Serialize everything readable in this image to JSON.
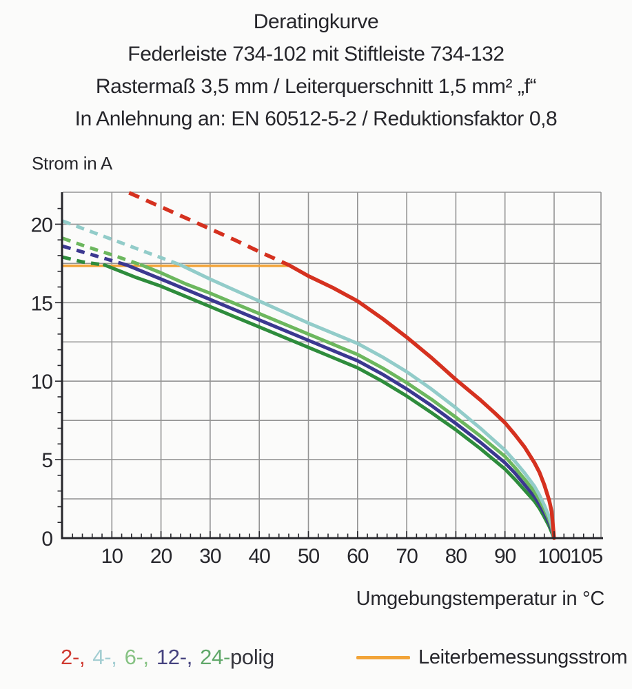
{
  "page": {
    "background": "#fbfbfa",
    "text_color": "#26262b"
  },
  "title": {
    "line1": "Deratingkurve",
    "line2": "Federleiste 734-102 mit Stiftleiste 734-132",
    "line3": "Rastermaß 3,5 mm / Leiterquerschnitt 1,5 mm² „f“",
    "line4": "In Anlehnung an: EN 60512-5-2 / Reduktionsfaktor 0,8"
  },
  "chart_data": {
    "type": "line",
    "ylabel": "Strom in A",
    "xlabel": "Umgebungstemperatur in °C",
    "grid_on": true,
    "grid_color": "#949494",
    "axis_color": "#26262b",
    "x_axis": {
      "min": 0,
      "max": 109.5,
      "gridlines": [
        10,
        20,
        30,
        40,
        50,
        60,
        70,
        80,
        90,
        100
      ],
      "tick_values": [
        10,
        20,
        30,
        40,
        50,
        60,
        70,
        80,
        90,
        100,
        105
      ],
      "tick_labels": [
        "10",
        "20",
        "30",
        "40",
        "50",
        "60",
        "70",
        "80",
        "90",
        "100",
        "105"
      ],
      "minor_step": 2
    },
    "y_axis": {
      "min": 0,
      "max": 22,
      "gridlines": [
        2.5,
        5,
        7.5,
        10,
        12.5,
        15,
        17.5,
        20
      ],
      "tick_values": [
        0,
        5,
        10,
        15,
        20
      ],
      "tick_labels": [
        "0",
        "5",
        "10",
        "15",
        "20"
      ],
      "minor_step": 1
    },
    "reference_line": {
      "label": "Leiterbemessungsstrom",
      "current_a": 17.35,
      "t_start": 0,
      "t_end": 46,
      "color": "#f2a439"
    },
    "series": [
      {
        "label": "24-polig",
        "color": "#2e8c3c",
        "dashed": [
          [
            0,
            17.9
          ],
          [
            4,
            17.6
          ],
          [
            8.5,
            17.4
          ]
        ],
        "solid": [
          [
            8.5,
            17.4
          ],
          [
            15,
            16.6
          ],
          [
            20,
            16.05
          ],
          [
            25,
            15.4
          ],
          [
            30,
            14.75
          ],
          [
            35,
            14.1
          ],
          [
            40,
            13.45
          ],
          [
            45,
            12.8
          ],
          [
            50,
            12.15
          ],
          [
            55,
            11.5
          ],
          [
            60,
            10.85
          ],
          [
            65,
            10.0
          ],
          [
            70,
            9.05
          ],
          [
            75,
            8.0
          ],
          [
            80,
            6.9
          ],
          [
            85,
            5.7
          ],
          [
            90,
            4.4
          ],
          [
            92,
            3.75
          ],
          [
            94,
            3.05
          ],
          [
            96,
            2.35
          ],
          [
            97,
            1.9
          ],
          [
            98,
            1.35
          ],
          [
            99,
            0.75
          ],
          [
            99.4,
            0.45
          ],
          [
            100,
            0
          ]
        ]
      },
      {
        "label": "12-polig",
        "color": "#3b3890",
        "dashed": [
          [
            0,
            18.6
          ],
          [
            6,
            18.05
          ],
          [
            13,
            17.4
          ]
        ],
        "solid": [
          [
            13,
            17.4
          ],
          [
            20,
            16.5
          ],
          [
            25,
            15.85
          ],
          [
            30,
            15.2
          ],
          [
            35,
            14.55
          ],
          [
            40,
            13.9
          ],
          [
            45,
            13.25
          ],
          [
            50,
            12.6
          ],
          [
            55,
            11.95
          ],
          [
            60,
            11.3
          ],
          [
            65,
            10.45
          ],
          [
            70,
            9.5
          ],
          [
            75,
            8.45
          ],
          [
            80,
            7.3
          ],
          [
            85,
            6.1
          ],
          [
            90,
            4.8
          ],
          [
            92,
            4.15
          ],
          [
            94,
            3.4
          ],
          [
            96,
            2.65
          ],
          [
            97,
            2.15
          ],
          [
            98,
            1.6
          ],
          [
            99,
            0.95
          ],
          [
            99.5,
            0.55
          ],
          [
            100,
            0
          ]
        ]
      },
      {
        "label": "6-polig",
        "color": "#6cb75e",
        "dashed": [
          [
            0,
            19.1
          ],
          [
            5,
            18.55
          ],
          [
            10,
            18.05
          ],
          [
            16,
            17.4
          ]
        ],
        "solid": [
          [
            16,
            17.4
          ],
          [
            20,
            16.9
          ],
          [
            25,
            16.2
          ],
          [
            30,
            15.6
          ],
          [
            35,
            14.95
          ],
          [
            40,
            14.3
          ],
          [
            45,
            13.65
          ],
          [
            50,
            13.0
          ],
          [
            55,
            12.35
          ],
          [
            60,
            11.7
          ],
          [
            65,
            10.85
          ],
          [
            70,
            9.9
          ],
          [
            75,
            8.85
          ],
          [
            80,
            7.7
          ],
          [
            85,
            6.5
          ],
          [
            90,
            5.2
          ],
          [
            92,
            4.5
          ],
          [
            94,
            3.75
          ],
          [
            96,
            2.95
          ],
          [
            97,
            2.45
          ],
          [
            98,
            1.85
          ],
          [
            99,
            1.15
          ],
          [
            99.5,
            0.7
          ],
          [
            100,
            0
          ]
        ]
      },
      {
        "label": "4-polig",
        "color": "#92ccc9",
        "dashed": [
          [
            0,
            20.2
          ],
          [
            6,
            19.5
          ],
          [
            12,
            18.8
          ],
          [
            18,
            18.1
          ],
          [
            24,
            17.4
          ]
        ],
        "solid": [
          [
            24,
            17.4
          ],
          [
            30,
            16.5
          ],
          [
            35,
            15.8
          ],
          [
            40,
            15.1
          ],
          [
            45,
            14.4
          ],
          [
            50,
            13.7
          ],
          [
            55,
            13.05
          ],
          [
            60,
            12.4
          ],
          [
            65,
            11.55
          ],
          [
            70,
            10.6
          ],
          [
            75,
            9.5
          ],
          [
            80,
            8.3
          ],
          [
            85,
            7.0
          ],
          [
            90,
            5.6
          ],
          [
            92,
            4.9
          ],
          [
            94,
            4.15
          ],
          [
            96,
            3.3
          ],
          [
            97,
            2.75
          ],
          [
            98,
            2.1
          ],
          [
            99,
            1.35
          ],
          [
            99.5,
            0.85
          ],
          [
            100,
            0
          ]
        ]
      },
      {
        "label": "2-polig",
        "color": "#d5311f",
        "dashed": [
          [
            13.5,
            22.0
          ],
          [
            20,
            21.1
          ],
          [
            25,
            20.4
          ],
          [
            30,
            19.7
          ],
          [
            35,
            19.0
          ],
          [
            40,
            18.25
          ],
          [
            46,
            17.4
          ]
        ],
        "solid": [
          [
            46,
            17.4
          ],
          [
            50,
            16.7
          ],
          [
            55,
            15.95
          ],
          [
            60,
            15.1
          ],
          [
            65,
            14.0
          ],
          [
            70,
            12.8
          ],
          [
            75,
            11.5
          ],
          [
            80,
            10.1
          ],
          [
            85,
            8.8
          ],
          [
            88,
            7.95
          ],
          [
            90,
            7.35
          ],
          [
            92,
            6.6
          ],
          [
            94,
            5.8
          ],
          [
            96,
            4.8
          ],
          [
            97,
            4.2
          ],
          [
            98,
            3.4
          ],
          [
            99,
            2.4
          ],
          [
            99.5,
            1.7
          ],
          [
            100,
            0
          ]
        ]
      }
    ]
  },
  "legend": {
    "poles_parts": [
      {
        "text": "2-,",
        "color": "#cf3a31"
      },
      {
        "text": "4-,",
        "color": "#a3ced2"
      },
      {
        "text": "6-,",
        "color": "#86c283"
      },
      {
        "text": "12-,",
        "color": "#46437f"
      },
      {
        "text": "24-",
        "color": "#61a86a"
      },
      {
        "text": "polig",
        "color": "#35353c"
      }
    ],
    "reference": {
      "label": "Leiterbemessungsstrom",
      "color": "#f2a439"
    }
  }
}
